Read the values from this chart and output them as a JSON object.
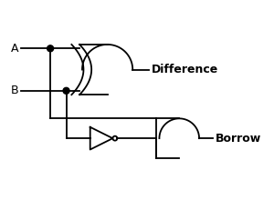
{
  "background_color": "#ffffff",
  "line_color": "#000000",
  "text_color": "#000000",
  "label_A": "A",
  "label_B": "B",
  "label_diff": "Difference",
  "label_borrow": "Borrow",
  "fig_width": 3.0,
  "fig_height": 2.2,
  "dpi": 100
}
